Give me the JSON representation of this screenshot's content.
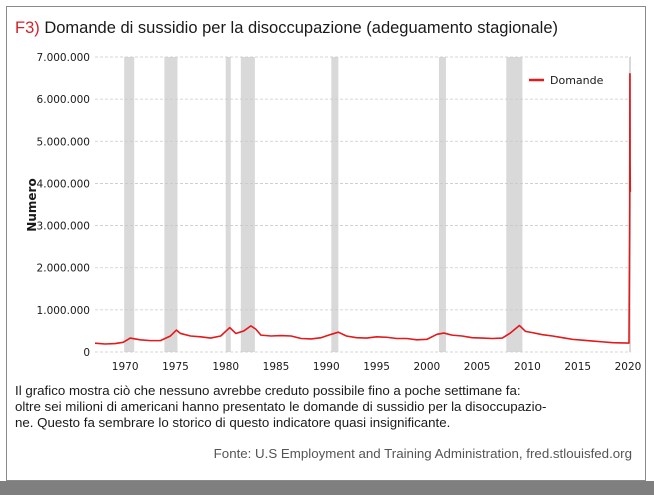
{
  "figure": {
    "label": "F3)",
    "title": "Domande di sussidio per la disoccupazione (adeguamento stagionale)"
  },
  "caption": {
    "lines": [
      "Il grafico mostra ciò che nessuno avrebbe creduto possibile fino a poche settimane fa:",
      "oltre sei milioni di americani hanno presentato le domande di sussidio per la disoccupazio-",
      "ne. Questo fa sembrare lo storico di questo indicatore quasi insignificante."
    ]
  },
  "source": "Fonte: U.S Employment and Training Administration, fred.stlouisfed.org",
  "colors": {
    "series": "#e3191c",
    "recession": "#d9d9d9",
    "grid": "#c9c9c9",
    "fig_label": "#d2232a"
  },
  "chart_data": {
    "type": "line",
    "title": "Domande di sussidio per la disoccupazione (adeguamento stagionale)",
    "xlabel": "",
    "ylabel": "Numero",
    "xlim": [
      1967,
      2020.3
    ],
    "ylim": [
      0,
      7000000
    ],
    "y_ticks": [
      0,
      1000000,
      2000000,
      3000000,
      4000000,
      5000000,
      6000000,
      7000000
    ],
    "y_tick_labels": [
      "0",
      "1.000.000",
      "2.000.000",
      "3.000.000",
      "4.000.000",
      "5.000.000",
      "6.000.000",
      "7.000.000"
    ],
    "x_ticks": [
      1970,
      1975,
      1980,
      1985,
      1990,
      1995,
      2000,
      2005,
      2010,
      2015,
      2020
    ],
    "x_tick_labels": [
      "1970",
      "1975",
      "1980",
      "1985",
      "1990",
      "1995",
      "2000",
      "2005",
      "2010",
      "2015",
      "2020"
    ],
    "grid": true,
    "legend": {
      "position": "top-right",
      "entries": [
        "Domande"
      ]
    },
    "recessions": [
      [
        1969.9,
        1970.9
      ],
      [
        1973.9,
        1975.2
      ],
      [
        1980.0,
        1980.5
      ],
      [
        1981.5,
        1982.9
      ],
      [
        1990.5,
        1991.2
      ],
      [
        2001.2,
        2001.9
      ],
      [
        2007.9,
        2009.5
      ],
      [
        2020.1,
        2020.3
      ]
    ],
    "series": [
      {
        "name": "Domande",
        "x": [
          1967.0,
          1968.0,
          1969.0,
          1969.8,
          1970.5,
          1971.5,
          1972.5,
          1973.5,
          1974.5,
          1975.1,
          1975.5,
          1976.5,
          1977.5,
          1978.5,
          1979.5,
          1980.4,
          1981.0,
          1981.8,
          1982.5,
          1983.0,
          1983.5,
          1984.5,
          1985.5,
          1986.5,
          1987.5,
          1988.5,
          1989.5,
          1990.5,
          1991.2,
          1992.0,
          1993.0,
          1994.0,
          1995.0,
          1996.0,
          1997.0,
          1998.0,
          1999.0,
          2000.0,
          2001.0,
          2001.7,
          2002.5,
          2003.5,
          2004.5,
          2005.5,
          2006.5,
          2007.5,
          2008.3,
          2009.2,
          2009.8,
          2010.5,
          2011.5,
          2012.5,
          2013.5,
          2014.5,
          2015.5,
          2016.5,
          2017.5,
          2018.5,
          2019.5,
          2020.1,
          2020.17,
          2020.19,
          2020.2,
          2020.21,
          2020.23
        ],
        "values": [
          210000,
          190000,
          200000,
          230000,
          330000,
          290000,
          270000,
          270000,
          380000,
          520000,
          440000,
          380000,
          360000,
          330000,
          380000,
          580000,
          440000,
          500000,
          620000,
          540000,
          400000,
          380000,
          390000,
          380000,
          320000,
          310000,
          340000,
          420000,
          470000,
          380000,
          340000,
          330000,
          360000,
          350000,
          320000,
          320000,
          290000,
          300000,
          420000,
          450000,
          400000,
          380000,
          340000,
          330000,
          320000,
          330000,
          450000,
          630000,
          490000,
          460000,
          410000,
          380000,
          340000,
          300000,
          280000,
          260000,
          240000,
          220000,
          215000,
          212000,
          3300000,
          6600000,
          6600000,
          4500000,
          3800000
        ]
      }
    ]
  }
}
